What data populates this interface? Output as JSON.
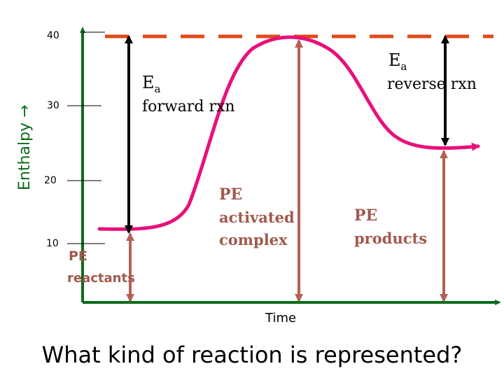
{
  "diagram": {
    "y_axis_label": "Enthalpy →",
    "x_axis_label": "Time",
    "y_ticks": [
      "40",
      "30",
      "20",
      "10"
    ],
    "ea_forward": {
      "symbol": "E",
      "subscript": "a",
      "text": "forward rxn"
    },
    "ea_reverse": {
      "symbol": "E",
      "subscript": "a",
      "text": "reverse rxn"
    },
    "pe_activated": {
      "line1": "PE",
      "line2": "activated",
      "line3": "complex"
    },
    "pe_products": {
      "line1": "PE",
      "line2": "products"
    },
    "pe_reactants": {
      "line1": "PE",
      "line2": "reactants"
    },
    "colors": {
      "axis": "#0b6b1a",
      "curve": "#e8117a",
      "dashed_line": "#e04a1a",
      "pe_arrow": "#b56055",
      "ea_arrow": "#000000"
    }
  },
  "question": "What kind of reaction is represented?"
}
